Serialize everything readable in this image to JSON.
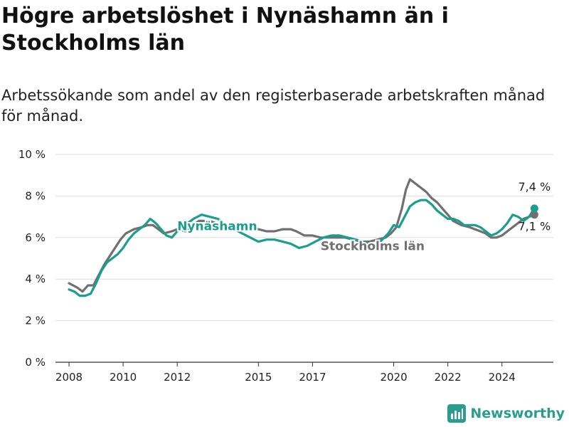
{
  "title": "Högre arbetslöshet i Nynäshamn än i Stockholms län",
  "subtitle": "Arbetssökande som andel av den registerbaserade arbetskraften månad för månad.",
  "brand": {
    "name": "Newsworthy",
    "icon": "newsworthy-logo-icon"
  },
  "colors": {
    "nynashamn": "#1a9e8f",
    "stockholm": "#707070",
    "grid": "#dddddd"
  },
  "chart_data": {
    "type": "line",
    "title": "Högre arbetslöshet i Nynäshamn än i Stockholms län",
    "subtitle": "Arbetssökande som andel av den registerbaserade arbetskraften månad för månad.",
    "xlabel": "",
    "ylabel": "",
    "ylim": [
      0,
      10
    ],
    "xlim": [
      2007.5,
      2025.9
    ],
    "y_ticks": [
      0,
      2,
      4,
      6,
      8,
      10
    ],
    "y_tick_labels": [
      "0 %",
      "2 %",
      "4 %",
      "6 %",
      "8 %",
      "10 %"
    ],
    "x_ticks": [
      2008,
      2010,
      2012,
      2015,
      2017,
      2020,
      2022,
      2024
    ],
    "x_tick_labels": [
      "2008",
      "2010",
      "2012",
      "2015",
      "2017",
      "2020",
      "2022",
      "2024"
    ],
    "grid": "horizontal",
    "legend": "direct labels on lines",
    "series": [
      {
        "name": "Stockholms län",
        "color": "#707070",
        "label": "Stockholms län",
        "end_label": "7,1 %",
        "x": [
          2008.0,
          2008.3,
          2008.5,
          2008.7,
          2008.9,
          2009.1,
          2009.3,
          2009.6,
          2009.9,
          2010.1,
          2010.4,
          2010.7,
          2010.9,
          2011.1,
          2011.3,
          2011.5,
          2011.8,
          2012.0,
          2012.3,
          2012.5,
          2012.8,
          2013.2,
          2013.6,
          2014.0,
          2014.4,
          2014.8,
          2015.0,
          2015.3,
          2015.6,
          2015.9,
          2016.2,
          2016.4,
          2016.7,
          2017.0,
          2017.3,
          2017.6,
          2017.9,
          2018.2,
          2018.5,
          2018.8,
          2019.1,
          2019.4,
          2019.7,
          2019.9,
          2020.1,
          2020.3,
          2020.45,
          2020.6,
          2020.8,
          2021.0,
          2021.2,
          2021.4,
          2021.6,
          2021.8,
          2022.0,
          2022.2,
          2022.5,
          2022.8,
          2023.0,
          2023.2,
          2023.4,
          2023.6,
          2023.8,
          2024.0,
          2024.2,
          2024.4,
          2024.6,
          2024.8,
          2025.0,
          2025.2
        ],
        "values": [
          3.8,
          3.6,
          3.4,
          3.7,
          3.7,
          4.2,
          4.7,
          5.3,
          5.9,
          6.2,
          6.4,
          6.5,
          6.6,
          6.6,
          6.4,
          6.2,
          6.3,
          6.4,
          6.3,
          6.5,
          6.8,
          6.8,
          6.6,
          6.4,
          6.4,
          6.4,
          6.4,
          6.3,
          6.3,
          6.4,
          6.4,
          6.3,
          6.1,
          6.1,
          6.0,
          6.0,
          6.0,
          6.0,
          5.9,
          5.8,
          5.8,
          5.9,
          6.0,
          6.2,
          6.5,
          7.4,
          8.3,
          8.8,
          8.6,
          8.4,
          8.2,
          7.9,
          7.7,
          7.4,
          7.1,
          6.8,
          6.6,
          6.5,
          6.4,
          6.3,
          6.2,
          6.0,
          6.0,
          6.1,
          6.3,
          6.5,
          6.7,
          6.9,
          7.0,
          7.1
        ]
      },
      {
        "name": "Nynäshamn",
        "color": "#1a9e8f",
        "label": "Nynäshamn",
        "end_label": "7,4 %",
        "x": [
          2008.0,
          2008.2,
          2008.4,
          2008.6,
          2008.8,
          2009.0,
          2009.2,
          2009.4,
          2009.6,
          2009.8,
          2010.0,
          2010.2,
          2010.4,
          2010.6,
          2010.8,
          2011.0,
          2011.2,
          2011.4,
          2011.6,
          2011.8,
          2012.0,
          2012.3,
          2012.6,
          2012.9,
          2013.2,
          2013.5,
          2013.8,
          2014.1,
          2014.4,
          2014.7,
          2015.0,
          2015.3,
          2015.6,
          2015.9,
          2016.2,
          2016.5,
          2016.8,
          2017.1,
          2017.4,
          2017.7,
          2018.0,
          2018.3,
          2018.6,
          2018.9,
          2019.2,
          2019.5,
          2019.8,
          2020.0,
          2020.2,
          2020.4,
          2020.6,
          2020.8,
          2021.0,
          2021.2,
          2021.4,
          2021.6,
          2021.8,
          2022.0,
          2022.2,
          2022.4,
          2022.6,
          2022.8,
          2023.0,
          2023.2,
          2023.4,
          2023.6,
          2023.8,
          2024.0,
          2024.2,
          2024.4,
          2024.6,
          2024.8,
          2025.0,
          2025.2
        ],
        "values": [
          3.5,
          3.4,
          3.2,
          3.2,
          3.3,
          3.8,
          4.4,
          4.8,
          5.0,
          5.2,
          5.5,
          5.9,
          6.2,
          6.4,
          6.6,
          6.9,
          6.7,
          6.4,
          6.1,
          6.0,
          6.3,
          6.6,
          6.9,
          7.1,
          7.0,
          6.9,
          6.6,
          6.4,
          6.2,
          6.0,
          5.8,
          5.9,
          5.9,
          5.8,
          5.7,
          5.5,
          5.6,
          5.8,
          6.0,
          6.1,
          6.1,
          6.0,
          5.9,
          5.8,
          5.6,
          5.8,
          6.2,
          6.6,
          6.5,
          7.0,
          7.5,
          7.7,
          7.8,
          7.8,
          7.6,
          7.3,
          7.1,
          6.9,
          6.9,
          6.8,
          6.6,
          6.6,
          6.6,
          6.5,
          6.3,
          6.1,
          6.2,
          6.4,
          6.7,
          7.1,
          7.0,
          6.8,
          7.0,
          7.4
        ]
      }
    ]
  }
}
